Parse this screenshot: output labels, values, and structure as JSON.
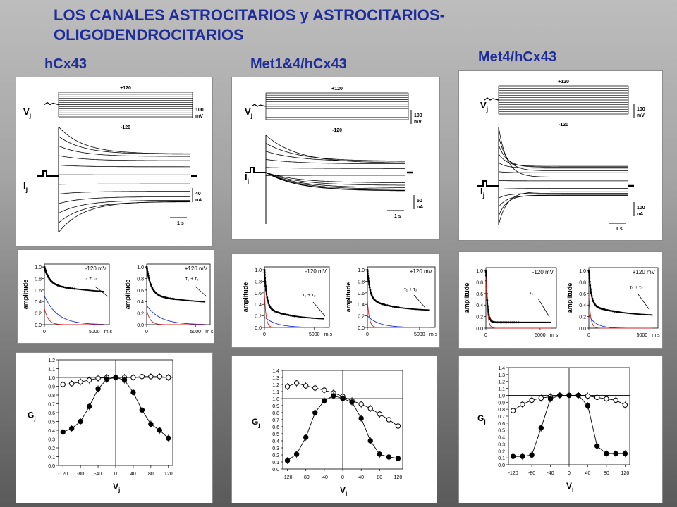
{
  "title": {
    "line1": "LOS CANALES ASTROCITARIOS y ASTROCITARIOS-",
    "line2": "OLIGODENDROCITARIOS"
  },
  "constructs": [
    {
      "label": "hCx43",
      "traces": {
        "vj_label": "V",
        "vj_sub": "j",
        "ij_label": "I",
        "ij_sub": "j",
        "vmax_label": "+120",
        "vmin_label": "-120",
        "v_scale": "100",
        "v_unit": "mV",
        "i_scale": "40",
        "i_unit": "nA",
        "t_scale": "1 s"
      },
      "decay": [
        {
          "voltage": "-120 mV",
          "annotation": "τ₁ + τ₂",
          "ylabel": "amplitude",
          "xticks": [
            "0",
            "5000"
          ],
          "xunit": "m s",
          "yticks": [
            "0.0",
            "0.2",
            "0.4",
            "0.6",
            "0.8",
            "1.0"
          ]
        },
        {
          "voltage": "+120 mV",
          "annotation": "τ₁ + τ₂",
          "ylabel": "amplitude",
          "xticks": [
            "0",
            "5000"
          ],
          "xunit": "m s",
          "yticks": [
            "0.0",
            "0.2",
            "0.4",
            "0.6",
            "0.8",
            "1.0"
          ]
        }
      ],
      "gj": {
        "ylabel": "G",
        "ysub": "j",
        "xlabel": "V",
        "xsub": "j",
        "xticks": [
          "-120",
          "-80",
          "-40",
          "0",
          "40",
          "80",
          "120"
        ],
        "yticks": [
          "0.0",
          "0.1",
          "0.2",
          "0.3",
          "0.4",
          "0.5",
          "0.6",
          "0.7",
          "0.8",
          "0.9",
          "1.0",
          "1.1",
          "1.2"
        ]
      }
    },
    {
      "label": "Met1&4/hCx43",
      "traces": {
        "vj_label": "V",
        "vj_sub": "j",
        "ij_label": "I",
        "ij_sub": "j",
        "vmax_label": "+120",
        "vmin_label": "-120",
        "v_scale": "100",
        "v_unit": "mV",
        "i_scale": "50",
        "i_unit": "nA",
        "t_scale": "1 s"
      },
      "decay": [
        {
          "voltage": "-120 mV",
          "annotation": "τ₁ + τ₂",
          "ylabel": "amplitude",
          "xticks": [
            "0",
            "5000"
          ],
          "xunit": "m s",
          "yticks": [
            "0.0",
            "0.2",
            "0.4",
            "0.6",
            "0.8",
            "1.0"
          ]
        },
        {
          "voltage": "+120 mV",
          "annotation": "τ₁ + τ₂",
          "ylabel": "amplitude",
          "xticks": [
            "0",
            "5000"
          ],
          "xunit": "m s",
          "yticks": [
            "0.0",
            "0.2",
            "0.4",
            "0.6",
            "0.8",
            "1.0"
          ]
        }
      ],
      "gj": {
        "ylabel": "G",
        "ysub": "j",
        "xlabel": "V",
        "xsub": "j",
        "xticks": [
          "-120",
          "-80",
          "-40",
          "0",
          "40",
          "80",
          "120"
        ],
        "yticks": [
          "0.0",
          "0.1",
          "0.2",
          "0.3",
          "0.4",
          "0.5",
          "0.6",
          "0.7",
          "0.8",
          "0.9",
          "1.0",
          "1.1",
          "1.2",
          "1.3",
          "1.4"
        ]
      }
    },
    {
      "label": "Met4/hCx43",
      "traces": {
        "vj_label": "V",
        "vj_sub": "j",
        "ij_label": "I",
        "ij_sub": "j",
        "vmax_label": "+120",
        "vmin_label": "-120",
        "v_scale": "100",
        "v_unit": "mV",
        "i_scale": "100",
        "i_unit": "nA",
        "t_scale": "1 s"
      },
      "decay": [
        {
          "voltage": "-120 mV",
          "annotation": "τ₁",
          "ylabel": "amplitude",
          "xticks": [
            "0",
            "5000"
          ],
          "xunit": "m s",
          "yticks": [
            "0.0",
            "0.2",
            "0.4",
            "0.6",
            "0.8",
            "1.0"
          ]
        },
        {
          "voltage": "+120 mV",
          "annotation": "τ₁ + τ₂",
          "ylabel": "amplitude",
          "xticks": [
            "0",
            "5000"
          ],
          "xunit": "m s",
          "yticks": [
            "0.0",
            "0.2",
            "0.4",
            "0.6",
            "0.8",
            "1.0"
          ]
        }
      ],
      "gj": {
        "ylabel": "G",
        "ysub": "j",
        "xlabel": "V",
        "xsub": "j",
        "xticks": [
          "-120",
          "-80",
          "-40",
          "0",
          "40",
          "80",
          "120"
        ],
        "yticks": [
          "0.0",
          "0.1",
          "0.2",
          "0.3",
          "0.4",
          "0.5",
          "0.6",
          "0.7",
          "0.8",
          "0.9",
          "1.0",
          "1.1",
          "1.2",
          "1.3",
          "1.4"
        ]
      }
    }
  ],
  "chart_data": [
    {
      "type": "line",
      "construct": "hCx43",
      "panel": "decay",
      "title": "-120 mV",
      "xlabel": "",
      "ylabel": "amplitude",
      "xlim": [
        0,
        6500
      ],
      "ylim": [
        0,
        1.05
      ],
      "series": [
        {
          "color": "#000000",
          "values": [
            {
              "a0": 1.0,
              "a1": 0.3,
              "t1": 500,
              "a2": 0.2,
              "t2": 6000
            }
          ]
        },
        {
          "color": "#1a2fd4",
          "values": [
            {
              "a0": 0.5,
              "t": 1300
            }
          ]
        },
        {
          "color": "#d42020",
          "values": [
            {
              "a0": 0.28,
              "t": 380
            }
          ]
        }
      ]
    },
    {
      "type": "line",
      "construct": "hCx43",
      "panel": "decay",
      "title": "+120 mV",
      "xlabel": "",
      "ylabel": "amplitude",
      "xlim": [
        0,
        6500
      ],
      "ylim": [
        0,
        1.05
      ],
      "series": [
        {
          "color": "#000000",
          "values": [
            {
              "a0": 1.0,
              "a1": 0.48,
              "t1": 450,
              "a2": 0.18,
              "t2": 5000
            }
          ]
        },
        {
          "color": "#1a2fd4",
          "values": [
            {
              "a0": 0.33,
              "t": 1400
            }
          ]
        },
        {
          "color": "#d42020",
          "values": [
            {
              "a0": 0.25,
              "t": 360
            }
          ]
        }
      ]
    },
    {
      "type": "line",
      "construct": "Met1&4/hCx43",
      "panel": "decay",
      "title": "-120 mV",
      "xlabel": "",
      "ylabel": "amplitude",
      "xlim": [
        0,
        6500
      ],
      "ylim": [
        0,
        1.05
      ],
      "series": [
        {
          "color": "#000000",
          "values": [
            {
              "a0": 1.0,
              "a1": 0.65,
              "t1": 220,
              "a2": 0.22,
              "t2": 2500
            }
          ]
        },
        {
          "color": "#1a2fd4",
          "values": [
            {
              "a0": 0.18,
              "t": 1200
            }
          ]
        },
        {
          "color": "#d42020",
          "values": [
            {
              "a0": 0.6,
              "t": 160
            }
          ]
        }
      ]
    },
    {
      "type": "line",
      "construct": "Met1&4/hCx43",
      "panel": "decay",
      "title": "+120 mV",
      "xlabel": "",
      "ylabel": "amplitude",
      "xlim": [
        0,
        6500
      ],
      "ylim": [
        0,
        1.05
      ],
      "series": [
        {
          "color": "#000000",
          "values": [
            {
              "a0": 1.0,
              "a1": 0.5,
              "t1": 250,
              "a2": 0.22,
              "t2": 2500
            }
          ]
        },
        {
          "color": "#1a2fd4",
          "values": [
            {
              "a0": 0.2,
              "t": 1100
            }
          ]
        },
        {
          "color": "#d42020",
          "values": [
            {
              "a0": 0.48,
              "t": 180
            }
          ]
        }
      ]
    },
    {
      "type": "line",
      "construct": "Met4/hCx43",
      "panel": "decay",
      "title": "-120 mV",
      "xlabel": "",
      "ylabel": "amplitude",
      "xlim": [
        0,
        6500
      ],
      "ylim": [
        0,
        1.05
      ],
      "series": [
        {
          "color": "#000000",
          "values": [
            {
              "a0": 1.0,
              "a1": 0.9,
              "t1": 140,
              "a2": 0.0,
              "t2": 1000
            }
          ]
        },
        {
          "color": "#d42020",
          "values": [
            {
              "a0": 0.88,
              "t": 140
            }
          ]
        }
      ]
    },
    {
      "type": "line",
      "construct": "Met4/hCx43",
      "panel": "decay",
      "title": "+120 mV",
      "xlabel": "",
      "ylabel": "amplitude",
      "xlim": [
        0,
        6500
      ],
      "ylim": [
        0,
        1.05
      ],
      "series": [
        {
          "color": "#000000",
          "values": [
            {
              "a0": 1.0,
              "a1": 0.6,
              "t1": 220,
              "a2": 0.2,
              "t2": 3000
            }
          ]
        },
        {
          "color": "#1a2fd4",
          "values": [
            {
              "a0": 0.22,
              "t": 700
            }
          ]
        },
        {
          "color": "#d42020",
          "values": [
            {
              "a0": 0.55,
              "t": 170
            }
          ]
        }
      ]
    },
    {
      "type": "scatter",
      "construct": "hCx43",
      "panel": "gj",
      "xlabel": "Vj",
      "ylabel": "Gj",
      "xlim": [
        -130,
        130
      ],
      "ylim": [
        0,
        1.2
      ],
      "x": [
        -120,
        -100,
        -80,
        -60,
        -40,
        -20,
        0,
        20,
        40,
        60,
        80,
        100,
        120
      ],
      "series": [
        {
          "name": "",
          "marker": "open",
          "values": [
            0.92,
            0.93,
            0.95,
            0.97,
            0.99,
            1.0,
            1.0,
            1.0,
            1.0,
            1.01,
            1.01,
            1.01,
            1.0
          ]
        },
        {
          "name": "",
          "marker": "filled",
          "values": [
            0.38,
            0.42,
            0.5,
            0.67,
            0.87,
            0.98,
            1.0,
            0.97,
            0.83,
            0.63,
            0.47,
            0.4,
            0.31
          ]
        }
      ]
    },
    {
      "type": "scatter",
      "construct": "Met1&4/hCx43",
      "panel": "gj",
      "xlabel": "Vj",
      "ylabel": "Gj",
      "xlim": [
        -130,
        130
      ],
      "ylim": [
        0,
        1.4
      ],
      "x": [
        -120,
        -100,
        -80,
        -60,
        -40,
        -20,
        0,
        20,
        40,
        60,
        80,
        100,
        120
      ],
      "series": [
        {
          "name": "",
          "marker": "open",
          "values": [
            1.17,
            1.22,
            1.18,
            1.15,
            1.12,
            1.08,
            1.03,
            0.97,
            0.92,
            0.86,
            0.78,
            0.7,
            0.61
          ]
        },
        {
          "name": "",
          "marker": "filled",
          "values": [
            0.12,
            0.21,
            0.45,
            0.8,
            0.97,
            1.04,
            1.0,
            0.95,
            0.72,
            0.4,
            0.21,
            0.17,
            0.15
          ]
        }
      ]
    },
    {
      "type": "scatter",
      "construct": "Met4/hCx43",
      "panel": "gj",
      "xlabel": "Vj",
      "ylabel": "Gj",
      "xlim": [
        -130,
        130
      ],
      "ylim": [
        0,
        1.4
      ],
      "x": [
        -120,
        -100,
        -80,
        -60,
        -40,
        -20,
        0,
        20,
        40,
        60,
        80,
        100,
        120
      ],
      "series": [
        {
          "name": "",
          "marker": "open",
          "values": [
            0.78,
            0.87,
            0.93,
            0.96,
            0.98,
            1.0,
            1.0,
            1.0,
            0.99,
            0.97,
            0.95,
            0.93,
            0.86
          ]
        },
        {
          "name": "",
          "marker": "filled",
          "values": [
            0.12,
            0.12,
            0.14,
            0.53,
            0.95,
            1.0,
            1.0,
            1.0,
            0.85,
            0.27,
            0.16,
            0.16,
            0.16
          ]
        }
      ]
    }
  ]
}
